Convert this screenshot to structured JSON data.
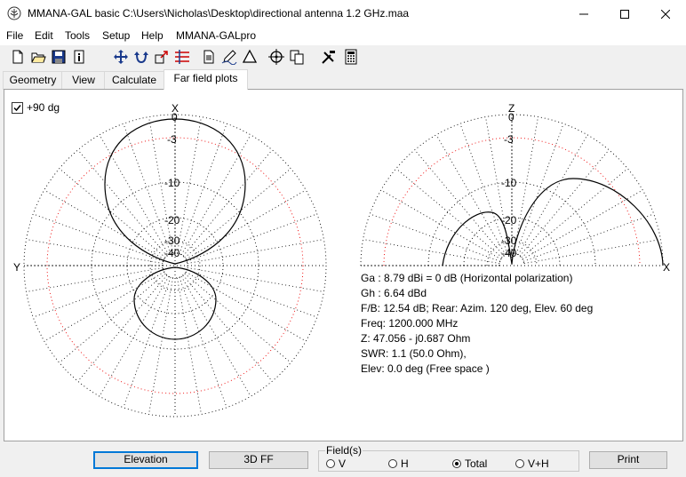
{
  "window": {
    "title": "MMANA-GAL basic C:\\Users\\Nicholas\\Desktop\\directional antenna 1.2 GHz.maa"
  },
  "menu": [
    "File",
    "Edit",
    "Tools",
    "Setup",
    "Help",
    "MMANA-GALpro"
  ],
  "toolbar_icons": [
    "new-file-icon",
    "open-folder-icon",
    "save-icon",
    "info-icon",
    "move-icon",
    "rotate-icon",
    "scale-icon",
    "ruler-icon",
    "document-icon",
    "pencil-icon",
    "triangle-icon",
    "target-icon",
    "copy-icon",
    "tools-icon",
    "calculator-icon"
  ],
  "tabs": [
    {
      "label": "Geometry",
      "active": false
    },
    {
      "label": "View",
      "active": false
    },
    {
      "label": "Calculate",
      "active": false
    },
    {
      "label": "Far field plots",
      "active": true
    }
  ],
  "checkbox": {
    "label": "+90 dg",
    "checked": true
  },
  "plots": {
    "left": {
      "top_label": "X",
      "left_label": "Y",
      "db_labels": [
        "0",
        "-3",
        "-10",
        "-20",
        "-30",
        "-40"
      ]
    },
    "right": {
      "top_label": "Z",
      "right_label": "X",
      "db_labels": [
        "0",
        "-3",
        "-10",
        "-20",
        "-30",
        "-40"
      ]
    }
  },
  "results": {
    "ga": "Ga : 8.79 dBi = 0 dB  (Horizontal polarization)",
    "gh": "Gh : 6.64 dBd",
    "fb": "F/B: 12.54 dB; Rear: Azim. 120 deg,  Elev. 60 deg",
    "freq": "Freq: 1200.000 MHz",
    "z": "Z: 47.056 - j0.687 Ohm",
    "swr": "SWR: 1.1 (50.0 Ohm),",
    "elev": "Elev: 0.0 deg (Free space )"
  },
  "buttons": {
    "elevation": "Elevation",
    "ff3d": "3D FF",
    "print": "Print"
  },
  "fields": {
    "legend": "Field(s)",
    "options": [
      {
        "label": "V",
        "selected": false
      },
      {
        "label": "H",
        "selected": false
      },
      {
        "label": "Total",
        "selected": true
      },
      {
        "label": "V+H",
        "selected": false
      }
    ]
  }
}
